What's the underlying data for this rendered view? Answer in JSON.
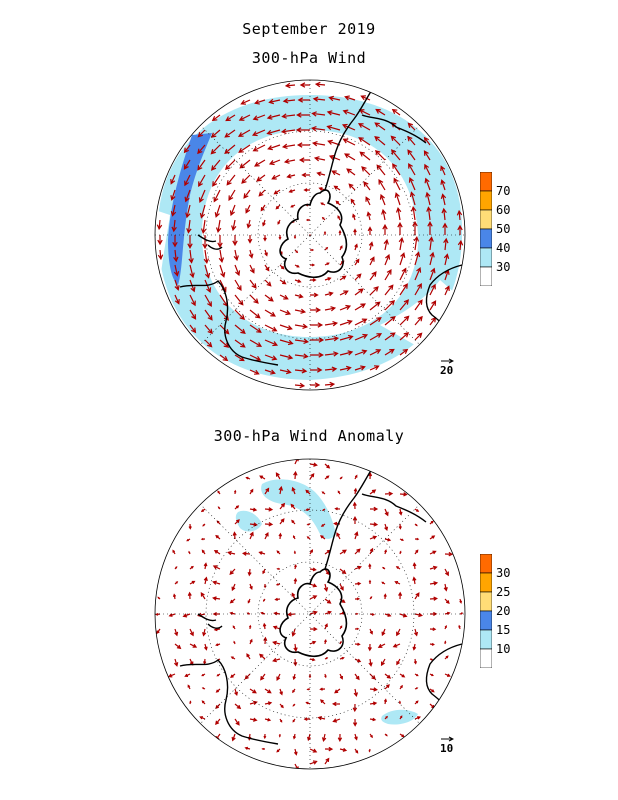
{
  "titles": {
    "main": "September 2019",
    "top_map": "300-hPa Wind",
    "bottom_map": "300-hPa Wind Anomaly"
  },
  "top_colorbar": {
    "labels": [
      "70",
      "60",
      "50",
      "40",
      "30"
    ],
    "colors": [
      "#ff6a00",
      "#ffa500",
      "#ffdd77",
      "#4a86e8",
      "#aee8f5",
      "#ffffff"
    ]
  },
  "bottom_colorbar": {
    "labels": [
      "30",
      "25",
      "20",
      "15",
      "10"
    ],
    "colors": [
      "#ff6a00",
      "#ffa500",
      "#ffdd77",
      "#4a86e8",
      "#aee8f5",
      "#ffffff"
    ]
  },
  "reference_vectors": {
    "top": "20",
    "bottom": "10"
  },
  "colors": {
    "vector": "#b00000",
    "coast": "#000000",
    "grid": "#000000"
  }
}
